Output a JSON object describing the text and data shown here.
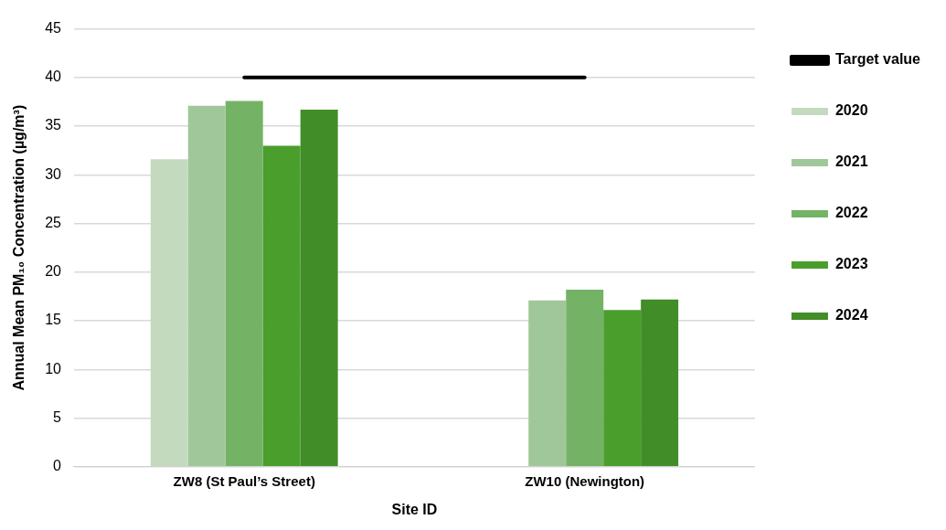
{
  "chart_data": {
    "type": "bar",
    "xlabel": "Site ID",
    "ylabel": "Annual Mean PM₁₀ Concentration (µg/m³)",
    "categories": [
      "ZW8 (St Paul’s Street)",
      "ZW10 (Newington)"
    ],
    "series": [
      {
        "name": "2020",
        "color": "#c3dabe",
        "values": [
          31.6,
          null
        ]
      },
      {
        "name": "2021",
        "color": "#a0c799",
        "values": [
          37.1,
          17.1
        ]
      },
      {
        "name": "2022",
        "color": "#74b366",
        "values": [
          37.6,
          18.2
        ]
      },
      {
        "name": "2023",
        "color": "#4a9e2c",
        "values": [
          33.0,
          16.1
        ]
      },
      {
        "name": "2024",
        "color": "#418d28",
        "values": [
          36.7,
          17.2
        ]
      },
      {
        "name": "Target value",
        "type": "line",
        "color": "#000000",
        "values": [
          40,
          40
        ],
        "marker": "none"
      }
    ],
    "ylim": [
      0,
      45
    ],
    "yticks": [
      0,
      5,
      10,
      15,
      20,
      25,
      30,
      35,
      40,
      45
    ],
    "grid": "y",
    "legend": "right"
  }
}
